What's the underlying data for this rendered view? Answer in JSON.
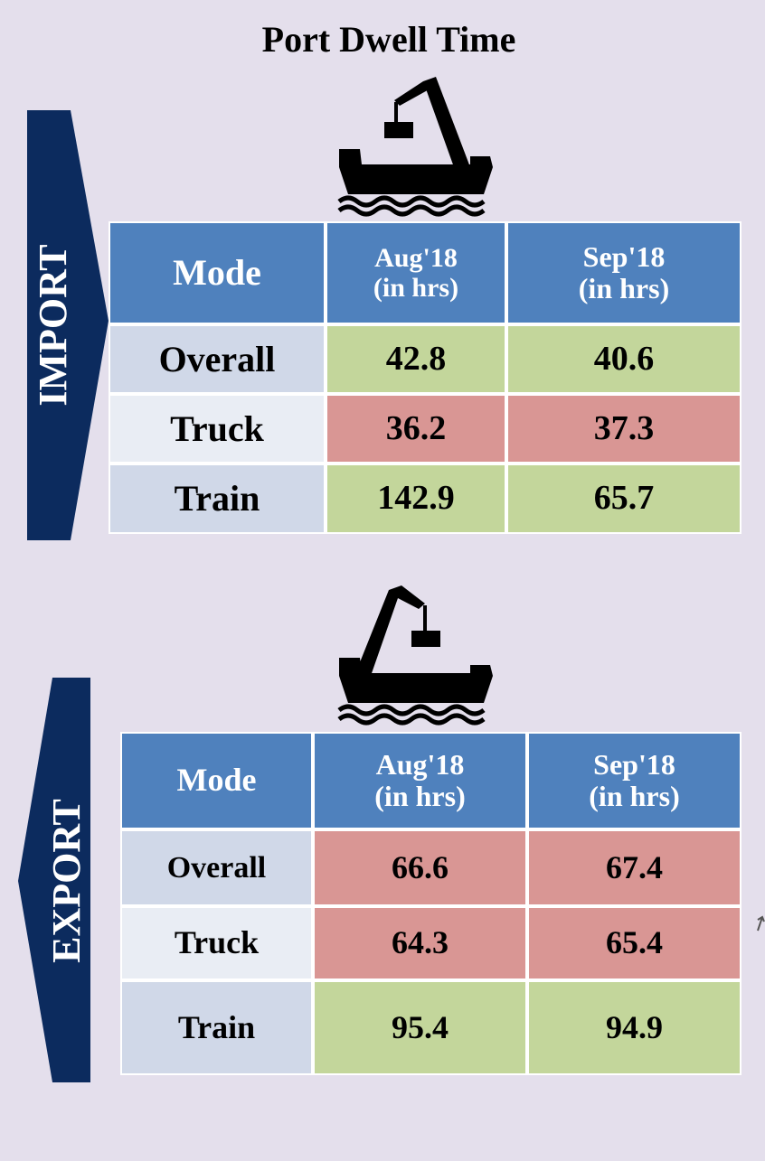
{
  "title": "Port Dwell Time",
  "sections": [
    {
      "label": "IMPORT",
      "table": {
        "header": [
          "Mode",
          [
            "Aug'18",
            "(in hrs)"
          ],
          [
            "Sep'18",
            "(in hrs)"
          ]
        ],
        "rows": [
          [
            "Overall",
            42.8,
            40.6
          ],
          [
            "Truck",
            36.2,
            37.3
          ],
          [
            "Train",
            142.9,
            65.7
          ]
        ],
        "cell_colors": [
          [
            "#d0d8e8",
            "#c3d69b",
            "#c3d69b"
          ],
          [
            "#e9edf4",
            "#d99694",
            "#d99694"
          ],
          [
            "#d0d8e8",
            "#c3d69b",
            "#c3d69b"
          ]
        ]
      }
    },
    {
      "label": "EXPORT",
      "table": {
        "header": [
          "Mode",
          [
            "Aug'18",
            "(in hrs)"
          ],
          [
            "Sep'18",
            "(in hrs)"
          ]
        ],
        "rows": [
          [
            "Overall",
            66.6,
            67.4
          ],
          [
            "Truck",
            64.3,
            65.4
          ],
          [
            "Train",
            95.4,
            94.9
          ]
        ],
        "cell_colors": [
          [
            "#d0d8e8",
            "#d99694",
            "#d99694"
          ],
          [
            "#e9edf4",
            "#d99694",
            "#d99694"
          ],
          [
            "#d0d8e8",
            "#c3d69b",
            "#c3d69b"
          ]
        ]
      }
    }
  ]
}
